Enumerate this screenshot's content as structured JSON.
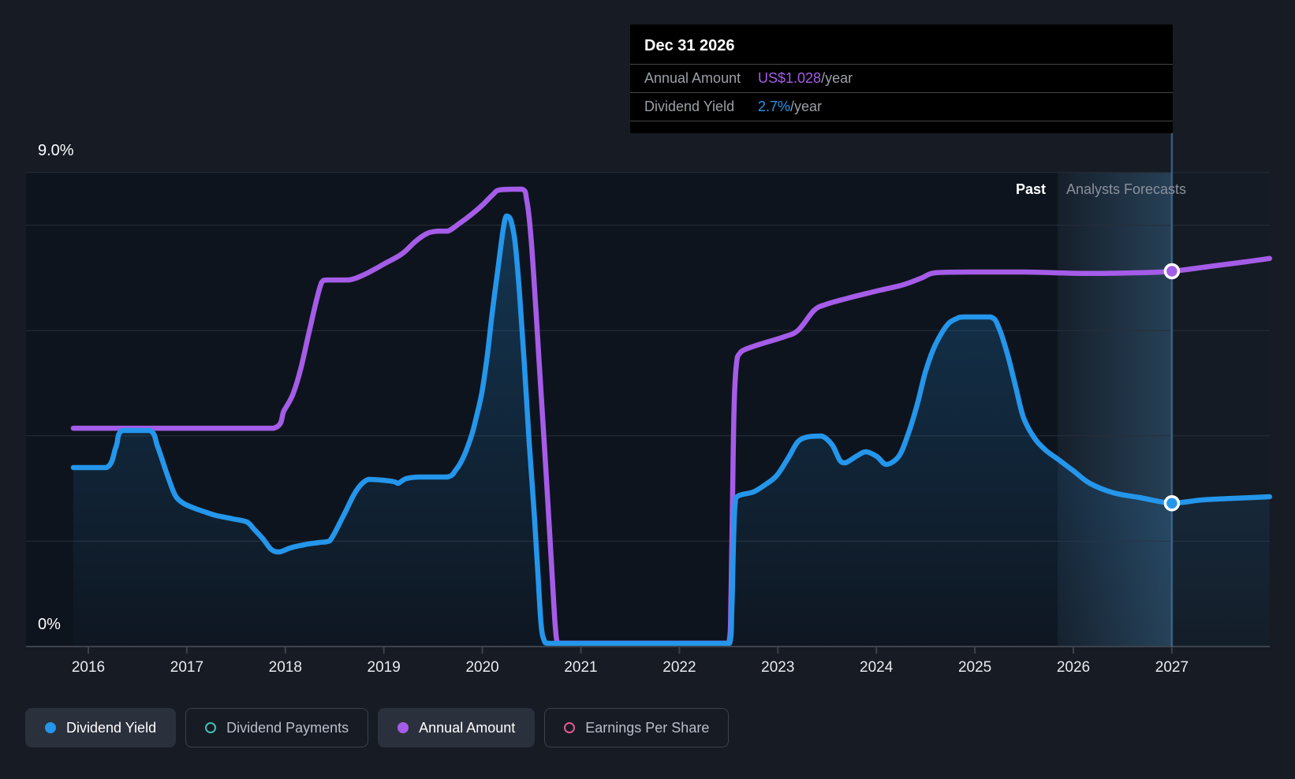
{
  "tooltip": {
    "date": "Dec 31 2026",
    "rows": [
      {
        "label": "Annual Amount",
        "value": "US$1.028",
        "suffix": "/year",
        "color": "#a55ce8"
      },
      {
        "label": "Dividend Yield",
        "value": "2.7%",
        "suffix": "/year",
        "color": "#2496eb"
      }
    ]
  },
  "regions": {
    "past_label": "Past",
    "forecast_label": "Analysts Forecasts"
  },
  "axis": {
    "y_top_label": "9.0%",
    "y_bottom_label": "0%"
  },
  "legend": [
    {
      "label": "Dividend Yield",
      "color": "#2496eb",
      "filled": true,
      "active": true
    },
    {
      "label": "Dividend Payments",
      "color": "#41c1b2",
      "filled": false,
      "active": false
    },
    {
      "label": "Annual Amount",
      "color": "#a55ce8",
      "filled": true,
      "active": true
    },
    {
      "label": "Earnings Per Share",
      "color": "#e25a92",
      "filled": false,
      "active": false
    }
  ],
  "colors": {
    "page_bg": "#161b24",
    "plot_past_bg": "#0e141d",
    "plot_forecast_bg": "#141b25",
    "gridline": "#272e38",
    "axis_line": "#3c434d",
    "yield_line": "#2496eb",
    "amount_line": "#a55ce8",
    "hover_line": "#4a7ba6",
    "tick_label": "#e9ebee"
  },
  "chart_data": {
    "type": "line",
    "title": "",
    "x_ticks": [
      2016,
      2017,
      2018,
      2019,
      2020,
      2021,
      2022,
      2023,
      2024,
      2025,
      2026,
      2027
    ],
    "x_range": [
      2015.85,
      2028.0
    ],
    "yield_axis": {
      "unit": "%",
      "min": 0,
      "max": 9,
      "gridlines_pct": [
        9,
        8,
        6,
        4,
        2
      ],
      "top_label": "9.0%",
      "bottom_label": "0%"
    },
    "amount_axis": {
      "unit": "US$/year",
      "min": 0,
      "max": 1.3
    },
    "divider_x": 2025.84,
    "hover_x": 2027.0,
    "legend_position": "bottom",
    "series": [
      {
        "name": "Annual Amount",
        "axis": "amount",
        "color": "#a55ce8",
        "marker": {
          "x": 2027.0,
          "y": 1.028
        },
        "points": [
          [
            2015.848,
            0.598
          ],
          [
            2017.882,
            0.598
          ],
          [
            2017.986,
            0.646
          ],
          [
            2018.074,
            0.689
          ],
          [
            2018.154,
            0.758
          ],
          [
            2018.234,
            0.853
          ],
          [
            2018.314,
            0.946
          ],
          [
            2018.37,
            0.998
          ],
          [
            2018.426,
            1.004
          ],
          [
            2018.642,
            1.004
          ],
          [
            2018.802,
            1.019
          ],
          [
            2019.002,
            1.048
          ],
          [
            2019.186,
            1.076
          ],
          [
            2019.322,
            1.11
          ],
          [
            2019.443,
            1.132
          ],
          [
            2019.547,
            1.138
          ],
          [
            2019.651,
            1.138
          ],
          [
            2019.763,
            1.158
          ],
          [
            2019.891,
            1.184
          ],
          [
            2020.003,
            1.21
          ],
          [
            2020.107,
            1.238
          ],
          [
            2020.179,
            1.251
          ],
          [
            2020.403,
            1.253
          ],
          [
            2020.451,
            1.222
          ],
          [
            2020.491,
            1.13
          ],
          [
            2020.531,
            0.976
          ],
          [
            2020.571,
            0.803
          ],
          [
            2020.611,
            0.631
          ],
          [
            2020.651,
            0.458
          ],
          [
            2020.691,
            0.276
          ],
          [
            2020.731,
            0.091
          ],
          [
            2020.755,
            0.017
          ],
          [
            2020.787,
            0.009
          ],
          [
            2022.501,
            0.009
          ],
          [
            2022.525,
            0.151
          ],
          [
            2022.541,
            0.432
          ],
          [
            2022.557,
            0.67
          ],
          [
            2022.581,
            0.778
          ],
          [
            2022.613,
            0.803
          ],
          [
            2022.669,
            0.814
          ],
          [
            2022.805,
            0.827
          ],
          [
            2023.069,
            0.849
          ],
          [
            2023.205,
            0.866
          ],
          [
            2023.365,
            0.92
          ],
          [
            2023.485,
            0.937
          ],
          [
            2023.75,
            0.957
          ],
          [
            2024.006,
            0.974
          ],
          [
            2024.27,
            0.991
          ],
          [
            2024.455,
            1.009
          ],
          [
            2024.607,
            1.024
          ],
          [
            2025.031,
            1.026
          ],
          [
            2025.511,
            1.026
          ],
          [
            2026.151,
            1.022
          ],
          [
            2026.672,
            1.024
          ],
          [
            2027.0,
            1.028
          ],
          [
            2027.432,
            1.043
          ],
          [
            2027.752,
            1.054
          ],
          [
            2027.992,
            1.063
          ]
        ]
      },
      {
        "name": "Dividend Yield",
        "axis": "yield",
        "color": "#2496eb",
        "area": true,
        "marker": {
          "x": 2027.0,
          "y": 2.72
        },
        "points": [
          [
            2015.848,
            3.398
          ],
          [
            2016.184,
            3.398
          ],
          [
            2016.28,
            3.787
          ],
          [
            2016.344,
            4.102
          ],
          [
            2016.625,
            4.102
          ],
          [
            2016.705,
            3.787
          ],
          [
            2016.801,
            3.263
          ],
          [
            2016.881,
            2.874
          ],
          [
            2016.961,
            2.725
          ],
          [
            2017.065,
            2.635
          ],
          [
            2017.201,
            2.545
          ],
          [
            2017.305,
            2.485
          ],
          [
            2017.465,
            2.425
          ],
          [
            2017.609,
            2.365
          ],
          [
            2017.681,
            2.231
          ],
          [
            2017.77,
            2.051
          ],
          [
            2017.858,
            1.841
          ],
          [
            2017.938,
            1.796
          ],
          [
            2018.05,
            1.871
          ],
          [
            2018.186,
            1.931
          ],
          [
            2018.346,
            1.976
          ],
          [
            2018.45,
            2.006
          ],
          [
            2018.586,
            2.47
          ],
          [
            2018.722,
            2.964
          ],
          [
            2018.842,
            3.174
          ],
          [
            2018.986,
            3.159
          ],
          [
            2019.106,
            3.129
          ],
          [
            2019.146,
            3.099
          ],
          [
            2019.227,
            3.189
          ],
          [
            2019.363,
            3.219
          ],
          [
            2019.643,
            3.219
          ],
          [
            2019.731,
            3.353
          ],
          [
            2019.811,
            3.608
          ],
          [
            2019.891,
            4.012
          ],
          [
            2019.939,
            4.356
          ],
          [
            2019.995,
            4.82
          ],
          [
            2020.051,
            5.539
          ],
          [
            2020.099,
            6.317
          ],
          [
            2020.155,
            7.126
          ],
          [
            2020.211,
            7.919
          ],
          [
            2020.243,
            8.174
          ],
          [
            2020.283,
            8.129
          ],
          [
            2020.331,
            7.695
          ],
          [
            2020.379,
            6.677
          ],
          [
            2020.427,
            5.344
          ],
          [
            2020.475,
            3.892
          ],
          [
            2020.523,
            2.62
          ],
          [
            2020.563,
            1.422
          ],
          [
            2020.595,
            0.449
          ],
          [
            2020.627,
            0.12
          ],
          [
            2020.683,
            0.06
          ],
          [
            2022.509,
            0.06
          ],
          [
            2022.533,
            0.749
          ],
          [
            2022.549,
            1.946
          ],
          [
            2022.565,
            2.695
          ],
          [
            2022.597,
            2.859
          ],
          [
            2022.749,
            2.934
          ],
          [
            2022.869,
            3.069
          ],
          [
            2022.989,
            3.248
          ],
          [
            2023.109,
            3.593
          ],
          [
            2023.205,
            3.892
          ],
          [
            2023.309,
            3.982
          ],
          [
            2023.445,
            3.997
          ],
          [
            2023.55,
            3.832
          ],
          [
            2023.63,
            3.533
          ],
          [
            2023.686,
            3.488
          ],
          [
            2023.806,
            3.623
          ],
          [
            2023.894,
            3.698
          ],
          [
            2024.006,
            3.608
          ],
          [
            2024.102,
            3.458
          ],
          [
            2024.231,
            3.623
          ],
          [
            2024.327,
            4.057
          ],
          [
            2024.415,
            4.596
          ],
          [
            2024.495,
            5.194
          ],
          [
            2024.575,
            5.629
          ],
          [
            2024.655,
            5.928
          ],
          [
            2024.735,
            6.138
          ],
          [
            2024.815,
            6.228
          ],
          [
            2024.887,
            6.257
          ],
          [
            2025.159,
            6.257
          ],
          [
            2025.247,
            6.033
          ],
          [
            2025.335,
            5.524
          ],
          [
            2025.415,
            4.925
          ],
          [
            2025.495,
            4.341
          ],
          [
            2025.607,
            3.952
          ],
          [
            2025.719,
            3.727
          ],
          [
            2025.839,
            3.563
          ],
          [
            2025.999,
            3.338
          ],
          [
            2026.167,
            3.099
          ],
          [
            2026.407,
            2.919
          ],
          [
            2026.672,
            2.829
          ],
          [
            2027.0,
            2.725
          ],
          [
            2027.312,
            2.784
          ],
          [
            2027.632,
            2.814
          ],
          [
            2027.992,
            2.844
          ]
        ]
      }
    ]
  }
}
